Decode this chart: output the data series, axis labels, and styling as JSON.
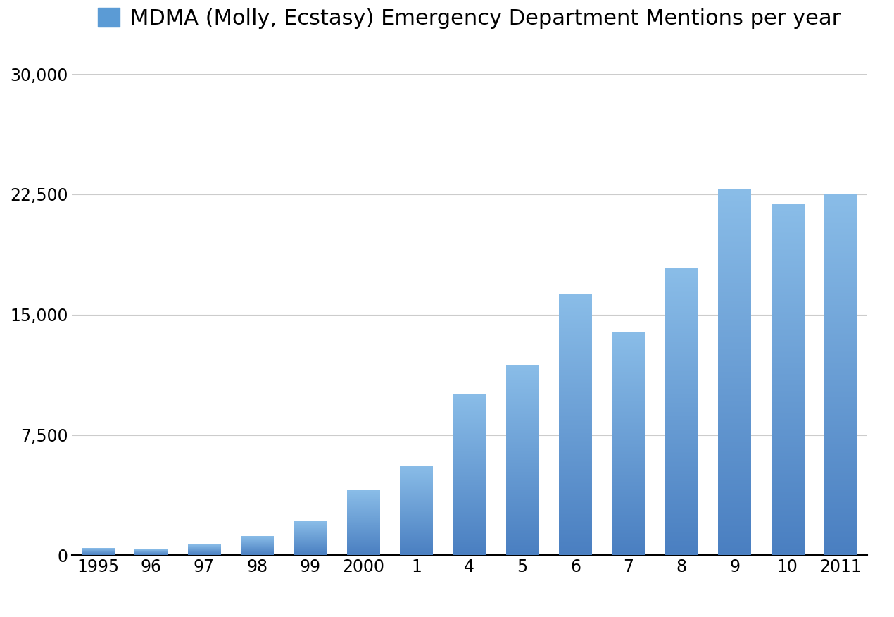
{
  "categories": [
    "1995",
    "96",
    "97",
    "98",
    "99",
    "2000",
    "1",
    "4",
    "5",
    "6",
    "7",
    "8",
    "9",
    "10",
    "2011"
  ],
  "values": [
    421,
    319,
    637,
    1143,
    2082,
    4026,
    5542,
    10052,
    11819,
    16235,
    13897,
    17865,
    22816,
    21836,
    22498
  ],
  "title": "MDMA (Molly, Ecstasy) Emergency Department Mentions per year",
  "bar_color_dark": "#4a7fc1",
  "bar_color_light": "#8abde8",
  "background_color": "#ffffff",
  "yticks": [
    0,
    7500,
    15000,
    22500,
    30000
  ],
  "ylim": [
    0,
    30000
  ],
  "grid_color": "#cccccc",
  "legend_color": "#5b9bd5",
  "title_fontsize": 22,
  "tick_fontsize": 17,
  "bar_width": 0.62
}
